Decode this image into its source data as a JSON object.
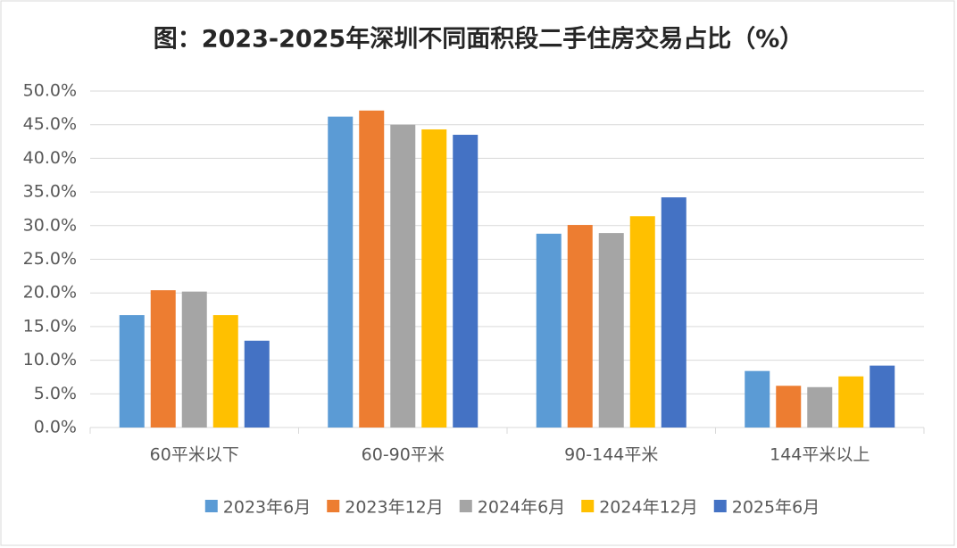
{
  "chart_data": {
    "type": "bar",
    "title": "图：2023-2025年深圳不同面积段二手住房交易占比（%）",
    "categories": [
      "60平米以下",
      "60-90平米",
      "90-144平米",
      "144平米以上"
    ],
    "series": [
      {
        "name": "2023年6月",
        "color": "#5b9bd5",
        "values": [
          16.7,
          46.2,
          28.8,
          8.4
        ]
      },
      {
        "name": "2023年12月",
        "color": "#ed7d31",
        "values": [
          20.4,
          47.1,
          30.1,
          6.2
        ]
      },
      {
        "name": "2024年6月",
        "color": "#a5a5a5",
        "values": [
          20.2,
          45.0,
          28.9,
          6.0
        ]
      },
      {
        "name": "2024年12月",
        "color": "#ffc000",
        "values": [
          16.7,
          44.3,
          31.4,
          7.6
        ]
      },
      {
        "name": "2025年6月",
        "color": "#4472c4",
        "values": [
          12.9,
          43.5,
          34.2,
          9.2
        ]
      }
    ],
    "ylim": [
      0,
      50
    ],
    "yticks": [
      {
        "value": 0,
        "label": "0.0%"
      },
      {
        "value": 5,
        "label": "5.0%"
      },
      {
        "value": 10,
        "label": "10.0%"
      },
      {
        "value": 15,
        "label": "15.0%"
      },
      {
        "value": 20,
        "label": "20.0%"
      },
      {
        "value": 25,
        "label": "25.0%"
      },
      {
        "value": 30,
        "label": "30.0%"
      },
      {
        "value": 35,
        "label": "35.0%"
      },
      {
        "value": 40,
        "label": "40.0%"
      },
      {
        "value": 45,
        "label": "45.0%"
      },
      {
        "value": 50,
        "label": "50.0%"
      }
    ],
    "grid": true,
    "legend": "bottom"
  }
}
